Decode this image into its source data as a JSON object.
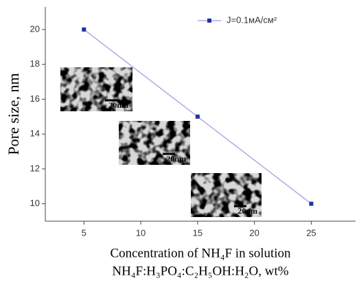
{
  "chart_data": {
    "type": "line",
    "x": [
      5,
      15,
      25
    ],
    "series": [
      {
        "name": "J=0.1мА/см²",
        "color": "#2233a0",
        "line_color": "#a8aee0",
        "values": [
          20,
          15,
          10
        ]
      }
    ],
    "xlim": [
      1.6,
      28.9
    ],
    "xticks": [
      5,
      10,
      15,
      20,
      25
    ],
    "ylim": [
      9,
      21.3
    ],
    "yticks": [
      10,
      12,
      14,
      16,
      18,
      20
    ],
    "y_label": "Pore size, nm",
    "x_label": [
      "Concentration of NH₄F in solution",
      "NH₄F:H₃PO₄:C₂H₅OH:H₂O, wt%"
    ],
    "inset_labels": [
      "20nm",
      "20nm",
      "20nm"
    ],
    "legend": "upper right"
  }
}
